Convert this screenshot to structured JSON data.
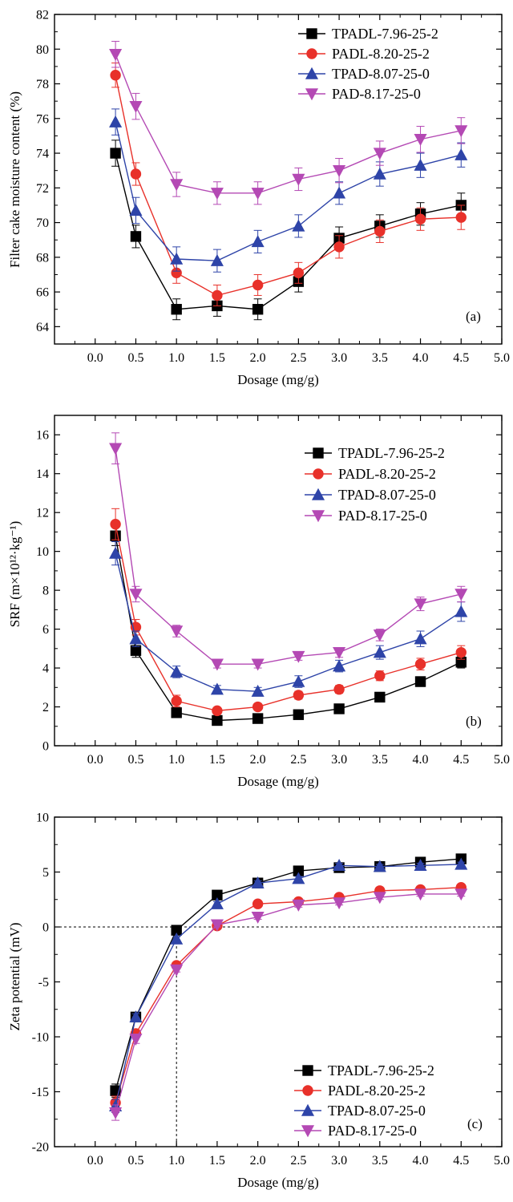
{
  "colors": {
    "TPADL": "#000000",
    "PADL": "#e8312a",
    "TPAD": "#2e44a8",
    "PAD": "#b449b4",
    "axis": "#000000"
  },
  "chart_data": [
    {
      "type": "line",
      "panel_label": "(a)",
      "xlabel": "Dosage (mg/g)",
      "ylabel": "Filter cake moisture content (%)",
      "xlim": [
        -0.5,
        5.0
      ],
      "ylim": [
        63,
        82
      ],
      "xticks": [
        "0.0",
        "0.5",
        "1.0",
        "1.5",
        "2.0",
        "2.5",
        "3.0",
        "3.5",
        "4.0",
        "4.5",
        "5.0"
      ],
      "yticks": [
        "64",
        "66",
        "68",
        "70",
        "72",
        "74",
        "76",
        "78",
        "80",
        "82"
      ],
      "legend_position": "top-right",
      "legend_font": "serif",
      "x": [
        0.25,
        0.5,
        1.0,
        1.5,
        2.0,
        2.5,
        3.0,
        3.5,
        4.0,
        4.5
      ],
      "series": [
        {
          "name": "TPADL-7.96-25-2",
          "marker": "square",
          "color": "#000000",
          "values": [
            74.0,
            69.2,
            65.0,
            65.2,
            65.0,
            66.6,
            69.1,
            69.8,
            70.5,
            71.0
          ],
          "errors": [
            0.75,
            0.65,
            0.6,
            0.6,
            0.6,
            0.6,
            0.65,
            0.65,
            0.65,
            0.7
          ]
        },
        {
          "name": "PADL-8.20-25-2",
          "marker": "circle",
          "color": "#e8312a",
          "values": [
            78.5,
            72.8,
            67.1,
            65.8,
            66.4,
            67.1,
            68.6,
            69.5,
            70.2,
            70.3
          ],
          "errors": [
            0.7,
            0.65,
            0.6,
            0.6,
            0.6,
            0.6,
            0.65,
            0.65,
            0.65,
            0.7
          ]
        },
        {
          "name": "TPAD-8.07-25-0",
          "marker": "triangle-up",
          "color": "#2e44a8",
          "values": [
            75.8,
            70.7,
            67.9,
            67.8,
            68.9,
            69.8,
            71.7,
            72.8,
            73.3,
            73.9
          ],
          "errors": [
            0.75,
            0.75,
            0.7,
            0.65,
            0.65,
            0.65,
            0.65,
            0.7,
            0.7,
            0.7
          ]
        },
        {
          "name": "PAD-8.17-25-0",
          "marker": "triangle-down",
          "color": "#b449b4",
          "values": [
            79.7,
            76.7,
            72.2,
            71.7,
            71.7,
            72.5,
            73.0,
            74.0,
            74.8,
            75.3
          ],
          "errors": [
            0.75,
            0.75,
            0.7,
            0.65,
            0.65,
            0.65,
            0.7,
            0.7,
            0.75,
            0.75
          ]
        }
      ]
    },
    {
      "type": "line",
      "panel_label": "(b)",
      "xlabel": "Dosage (mg/g)",
      "ylabel": "SRF (m×10¹²·kg⁻¹)",
      "xlim": [
        -0.5,
        5.0
      ],
      "ylim": [
        0,
        17
      ],
      "xticks": [
        "0.0",
        "0.5",
        "1.0",
        "1.5",
        "2.0",
        "2.5",
        "3.0",
        "3.5",
        "4.0",
        "4.5",
        "5.0"
      ],
      "yticks": [
        "0",
        "2",
        "4",
        "6",
        "8",
        "10",
        "12",
        "14",
        "16"
      ],
      "legend_position": "top-right",
      "legend_font": "sans",
      "x": [
        0.25,
        0.5,
        1.0,
        1.5,
        2.0,
        2.5,
        3.0,
        3.5,
        4.0,
        4.5
      ],
      "series": [
        {
          "name": "TPADL-7.96-25-2",
          "marker": "square",
          "color": "#000000",
          "values": [
            10.8,
            4.9,
            1.7,
            1.3,
            1.4,
            1.6,
            1.9,
            2.5,
            3.3,
            4.3
          ],
          "errors": [
            0.5,
            0.35,
            0.15,
            0.1,
            0.1,
            0.1,
            0.1,
            0.15,
            0.25,
            0.3
          ]
        },
        {
          "name": "PADL-8.20-25-2",
          "marker": "circle",
          "color": "#e8312a",
          "values": [
            11.4,
            6.1,
            2.3,
            1.8,
            2.0,
            2.6,
            2.9,
            3.6,
            4.2,
            4.8
          ],
          "errors": [
            0.8,
            0.4,
            0.3,
            0.15,
            0.15,
            0.2,
            0.2,
            0.25,
            0.3,
            0.35
          ]
        },
        {
          "name": "TPAD-8.07-25-0",
          "marker": "triangle-up",
          "color": "#2e44a8",
          "values": [
            9.9,
            5.5,
            3.8,
            2.9,
            2.8,
            3.3,
            4.1,
            4.8,
            5.5,
            6.9
          ],
          "errors": [
            0.6,
            0.4,
            0.3,
            0.2,
            0.2,
            0.3,
            0.3,
            0.35,
            0.4,
            0.5
          ]
        },
        {
          "name": "PAD-8.17-25-0",
          "marker": "triangle-down",
          "color": "#b449b4",
          "values": [
            15.3,
            7.8,
            5.9,
            4.2,
            4.2,
            4.6,
            4.8,
            5.7,
            7.3,
            7.8
          ],
          "errors": [
            0.8,
            0.4,
            0.3,
            0.2,
            0.2,
            0.2,
            0.25,
            0.3,
            0.35,
            0.4
          ]
        }
      ]
    },
    {
      "type": "line",
      "panel_label": "(c)",
      "xlabel": "Dosage (mg/g)",
      "ylabel": "Zeta potential (mV)",
      "xlim": [
        -0.5,
        5.0
      ],
      "ylim": [
        -20,
        10
      ],
      "xticks": [
        "0.0",
        "0.5",
        "1.0",
        "1.5",
        "2.0",
        "2.5",
        "3.0",
        "3.5",
        "4.0",
        "4.5",
        "5.0"
      ],
      "yticks": [
        "-20",
        "-15",
        "-10",
        "-5",
        "0",
        "5",
        "10"
      ],
      "legend_position": "bottom-right",
      "legend_font": "sans",
      "reference_lines": {
        "horizontal_y": 0,
        "vertical_x": 1.0
      },
      "x": [
        0.25,
        0.5,
        1.0,
        1.5,
        2.0,
        2.5,
        3.0,
        3.5,
        4.0,
        4.5
      ],
      "series": [
        {
          "name": "TPADL-7.96-25-2",
          "marker": "square",
          "color": "#000000",
          "values": [
            -14.9,
            -8.2,
            -0.3,
            2.9,
            4.0,
            5.1,
            5.4,
            5.5,
            5.9,
            6.2
          ],
          "errors": [
            0.6,
            0.3,
            0.2,
            0.2,
            0.2,
            0.2,
            0.2,
            0.2,
            0.2,
            0.2
          ]
        },
        {
          "name": "PADL-8.20-25-2",
          "marker": "circle",
          "color": "#e8312a",
          "values": [
            -16.0,
            -9.7,
            -3.5,
            0.1,
            2.1,
            2.3,
            2.7,
            3.3,
            3.4,
            3.6
          ],
          "errors": [
            0.6,
            0.3,
            0.2,
            0.2,
            0.2,
            0.2,
            0.2,
            0.2,
            0.2,
            0.2
          ]
        },
        {
          "name": "TPAD-8.07-25-0",
          "marker": "triangle-up",
          "color": "#2e44a8",
          "values": [
            -16.3,
            -8.2,
            -1.1,
            2.1,
            4.0,
            4.4,
            5.6,
            5.5,
            5.6,
            5.7
          ],
          "errors": [
            0.6,
            0.3,
            0.2,
            0.2,
            0.2,
            0.2,
            0.2,
            0.2,
            0.2,
            0.2
          ]
        },
        {
          "name": "PAD-8.17-25-0",
          "marker": "triangle-down",
          "color": "#b449b4",
          "values": [
            -16.9,
            -10.2,
            -3.9,
            0.2,
            0.9,
            2.0,
            2.2,
            2.7,
            3.0,
            3.0
          ],
          "errors": [
            0.7,
            0.4,
            0.2,
            0.2,
            0.2,
            0.2,
            0.2,
            0.2,
            0.2,
            0.2
          ]
        }
      ]
    }
  ]
}
